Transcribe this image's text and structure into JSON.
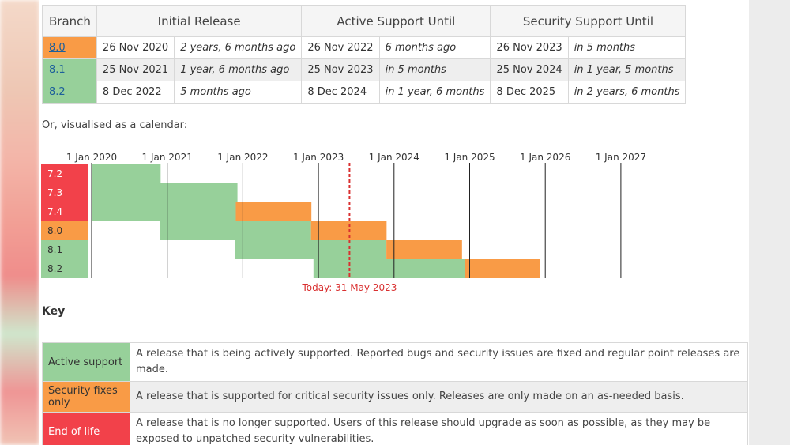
{
  "versions_table": {
    "headers": [
      "Branch",
      "Initial Release",
      "Active Support Until",
      "Security Support Until"
    ],
    "rows": [
      {
        "branch": "8.0",
        "initial_date": "26 Nov 2020",
        "initial_rel": "2 years, 6 months ago",
        "active_date": "26 Nov 2022",
        "active_rel": "6 months ago",
        "security_date": "26 Nov 2023",
        "security_rel": "in 5 months",
        "status": "security"
      },
      {
        "branch": "8.1",
        "initial_date": "25 Nov 2021",
        "initial_rel": "1 year, 6 months ago",
        "active_date": "25 Nov 2023",
        "active_rel": "in 5 months",
        "security_date": "25 Nov 2024",
        "security_rel": "in 1 year, 5 months",
        "status": "active"
      },
      {
        "branch": "8.2",
        "initial_date": "8 Dec 2022",
        "initial_rel": "5 months ago",
        "active_date": "8 Dec 2024",
        "active_rel": "in 1 year, 6 months",
        "security_date": "8 Dec 2025",
        "security_rel": "in 2 years, 6 months",
        "status": "active"
      }
    ]
  },
  "calendar": {
    "caption": "Or, visualised as a calendar:",
    "year_labels": [
      "1 Jan 2020",
      "1 Jan 2021",
      "1 Jan 2022",
      "1 Jan 2023",
      "1 Jan 2024",
      "1 Jan 2025",
      "1 Jan 2026",
      "1 Jan 2027"
    ],
    "today_label": "Today: 31 May 2023",
    "branches": [
      {
        "label": "7.2",
        "status": "eol",
        "active_start": "2019-11-30",
        "active_end": "2020-11-30",
        "security_end": "2020-11-30",
        "security_start": "2019-11-30"
      },
      {
        "label": "7.3",
        "status": "eol",
        "active_start": "2019-11-28",
        "active_end": "2021-12-06",
        "security_end": "2021-12-06"
      },
      {
        "label": "7.4",
        "status": "eol",
        "active_start": "2019-11-28",
        "active_end": "2021-11-28",
        "security_end": "2022-11-28"
      },
      {
        "label": "8.0",
        "status": "security",
        "active_start": "2020-11-26",
        "active_end": "2022-11-26",
        "security_end": "2023-11-26"
      },
      {
        "label": "8.1",
        "status": "active",
        "active_start": "2021-11-25",
        "active_end": "2023-11-25",
        "security_end": "2024-11-25"
      },
      {
        "label": "8.2",
        "status": "active",
        "active_start": "2022-12-08",
        "active_end": "2024-12-08",
        "security_end": "2025-12-08"
      }
    ]
  },
  "key": {
    "title": "Key",
    "rows": [
      {
        "label": "Active support",
        "status": "active",
        "description": "A release that is being actively supported. Reported bugs and security issues are fixed and regular point releases are made."
      },
      {
        "label": "Security fixes only",
        "status": "security",
        "description": "A release that is supported for critical security issues only. Releases are only made on an as-needed basis."
      },
      {
        "label": "End of life",
        "status": "eol",
        "description": "A release that is no longer supported. Users of this release should upgrade as soon as possible, as they may be exposed to unpatched security vulnerabilities."
      }
    ]
  },
  "colors": {
    "active": "#97d09a",
    "security": "#f99b46",
    "eol": "#f2414a",
    "today_line": "#d93030",
    "link": "#1d5f9b"
  }
}
